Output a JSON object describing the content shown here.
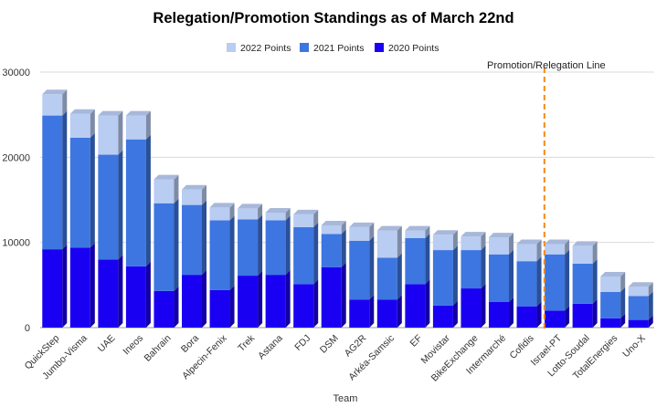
{
  "chart_data": {
    "type": "bar",
    "stacked": true,
    "style": "3d",
    "title": "Relegation/Promotion Standings as of March 22nd",
    "xlabel": "Team",
    "ylabel": "",
    "ylim": [
      0,
      30000
    ],
    "yticks": [
      0,
      10000,
      20000,
      30000
    ],
    "ytick_labels": [
      "0",
      "10000",
      "20000",
      "30000"
    ],
    "grid": true,
    "legend_position": "top",
    "categories": [
      "QuickStep",
      "Jumbo-Visma",
      "UAE",
      "Ineos",
      "Bahrain",
      "Bora",
      "Alpecin-Fenix",
      "Trek",
      "Astana",
      "FDJ",
      "DSM",
      "AG2R",
      "Arkéa-Samsic",
      "EF",
      "Movistar",
      "BikeExchange",
      "Intermarché",
      "Cofidis",
      "Israel-PT",
      "Lotto-Soudal",
      "TotalEnergies",
      "Uno-X"
    ],
    "series": [
      {
        "name": "2020 Points",
        "color": "#1a00f2",
        "values": [
          9200,
          9400,
          8000,
          7200,
          4300,
          6200,
          4400,
          6100,
          6200,
          5100,
          7100,
          3300,
          3300,
          5100,
          2600,
          4600,
          3000,
          2500,
          2000,
          2800,
          1100,
          900
        ]
      },
      {
        "name": "2021 Points",
        "color": "#3d76e0",
        "values": [
          15700,
          12900,
          12300,
          14900,
          10300,
          8200,
          8200,
          6600,
          6400,
          6700,
          3900,
          6900,
          4900,
          5400,
          6500,
          4500,
          5600,
          5300,
          6600,
          4700,
          3100,
          2800
        ]
      },
      {
        "name": "2022 Points",
        "color": "#b9ccf2",
        "values": [
          2500,
          2800,
          4600,
          2800,
          2800,
          1800,
          1500,
          1300,
          900,
          1500,
          1000,
          1600,
          3200,
          900,
          1800,
          1600,
          2000,
          2000,
          1200,
          2100,
          1800,
          1100
        ]
      }
    ],
    "legend": [
      "2022 Points",
      "2021 Points",
      "2020 Points"
    ],
    "annotations": [
      {
        "text": "Promotion/Relegation Line",
        "between_categories": [
          "Cofidis",
          "Israel-PT"
        ],
        "color": "#f28b1c",
        "style": "dashed"
      }
    ]
  }
}
